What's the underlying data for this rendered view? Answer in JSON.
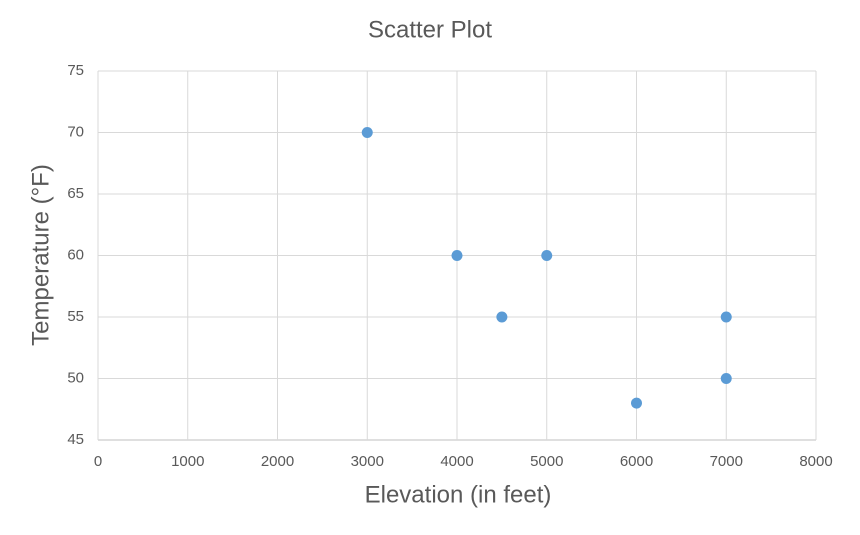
{
  "chart_data": {
    "type": "scatter",
    "title": "Scatter Plot",
    "x_label": "Elevation (in feet)",
    "y_label": "Temperature (°F)",
    "x": [
      3000,
      4000,
      5000,
      4500,
      7000,
      7000,
      6000
    ],
    "values": [
      70,
      60,
      60,
      55,
      55,
      50,
      48
    ],
    "color": "#5b9bd5",
    "xlim": [
      0,
      8000
    ],
    "xticks": [
      0,
      1000,
      2000,
      3000,
      4000,
      5000,
      6000,
      7000,
      8000
    ],
    "ylim": [
      45,
      75
    ],
    "yticks": [
      45,
      50,
      55,
      60,
      65,
      70,
      75
    ],
    "grid": true
  }
}
